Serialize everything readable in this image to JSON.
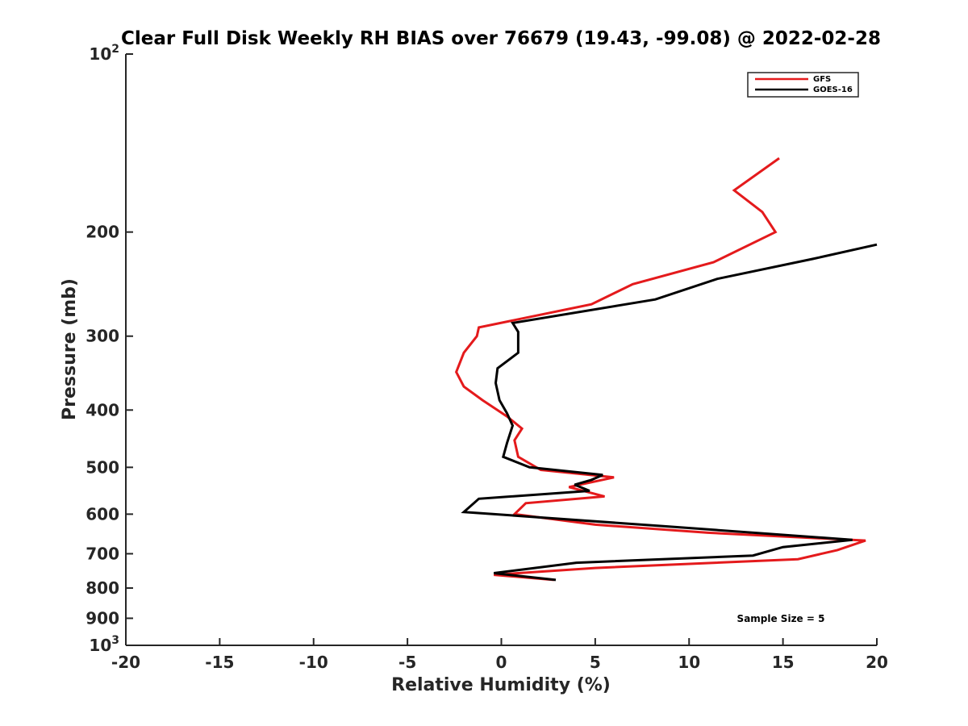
{
  "chart_data": {
    "type": "line",
    "title": "Clear Full Disk Weekly RH BIAS over 76679 (19.43, -99.08) @ 2022-02-28",
    "xlabel": "Relative Humidity (%)",
    "ylabel": "Pressure (mb)",
    "xlim": [
      -20,
      20
    ],
    "ylim": [
      1000,
      100
    ],
    "y_scale": "log-reversed",
    "x_ticks": [
      "-20",
      "-15",
      "-10",
      "-5",
      "0",
      "5",
      "10",
      "15",
      "20"
    ],
    "y_tick_values": [
      100,
      200,
      300,
      400,
      500,
      600,
      700,
      800,
      900,
      1000
    ],
    "y_tick_labels": [
      {
        "base": "10",
        "exp": "2"
      },
      {
        "base": "200"
      },
      {
        "base": "300"
      },
      {
        "base": "400"
      },
      {
        "base": "500"
      },
      {
        "base": "600"
      },
      {
        "base": "700"
      },
      {
        "base": "800"
      },
      {
        "base": "900"
      },
      {
        "base": "10",
        "exp": "3"
      }
    ],
    "legend_position": "top-right",
    "series": [
      {
        "name": "GFS",
        "color": "#e41a1c",
        "points": [
          [
            14.8,
            150
          ],
          [
            12.4,
            170
          ],
          [
            13.9,
            185
          ],
          [
            14.6,
            200
          ],
          [
            11.3,
            225
          ],
          [
            7.0,
            245
          ],
          [
            4.8,
            265
          ],
          [
            -1.2,
            290
          ],
          [
            -1.3,
            300
          ],
          [
            -2.0,
            320
          ],
          [
            -2.4,
            345
          ],
          [
            -2.0,
            365
          ],
          [
            -1.0,
            385
          ],
          [
            0.3,
            410
          ],
          [
            1.1,
            430
          ],
          [
            0.7,
            450
          ],
          [
            0.9,
            480
          ],
          [
            2.1,
            505
          ],
          [
            6.0,
            520
          ],
          [
            3.6,
            540
          ],
          [
            5.5,
            560
          ],
          [
            1.3,
            575
          ],
          [
            0.7,
            600
          ],
          [
            5.0,
            625
          ],
          [
            11.0,
            645
          ],
          [
            19.4,
            665
          ],
          [
            17.9,
            690
          ],
          [
            15.8,
            715
          ],
          [
            5.0,
            740
          ],
          [
            -0.4,
            760
          ],
          [
            2.8,
            775
          ]
        ]
      },
      {
        "name": "GOES-16",
        "color": "#000000",
        "points": [
          [
            20.0,
            210
          ],
          [
            16.6,
            222
          ],
          [
            11.5,
            240
          ],
          [
            8.2,
            260
          ],
          [
            0.6,
            285
          ],
          [
            0.9,
            295
          ],
          [
            0.9,
            320
          ],
          [
            -0.2,
            340
          ],
          [
            -0.3,
            360
          ],
          [
            -0.1,
            385
          ],
          [
            0.3,
            405
          ],
          [
            0.6,
            425
          ],
          [
            0.3,
            455
          ],
          [
            0.1,
            480
          ],
          [
            1.5,
            500
          ],
          [
            5.4,
            515
          ],
          [
            4.8,
            525
          ],
          [
            3.9,
            535
          ],
          [
            4.7,
            548
          ],
          [
            -1.2,
            565
          ],
          [
            -2.0,
            595
          ],
          [
            9.0,
            630
          ],
          [
            18.7,
            663
          ],
          [
            15.0,
            682
          ],
          [
            13.4,
            705
          ],
          [
            4.0,
            725
          ],
          [
            -0.4,
            755
          ],
          [
            2.9,
            775
          ]
        ]
      }
    ],
    "annotation": "Sample Size = 5"
  }
}
